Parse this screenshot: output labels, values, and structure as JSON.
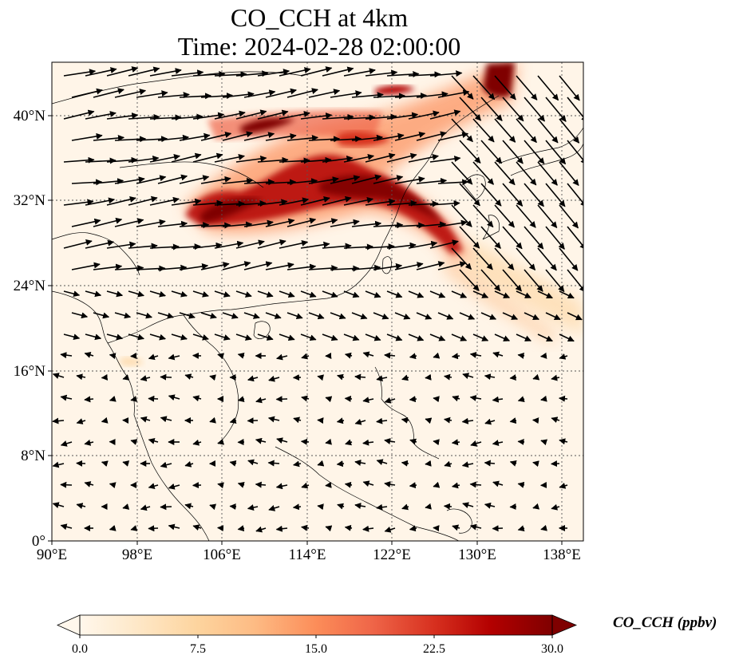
{
  "figure": {
    "title_line1": "CO_CCH at 4km",
    "title_line2": "Time: 2024-02-28 02:00:00"
  },
  "map": {
    "extent": {
      "lon_min": 90,
      "lon_max": 140,
      "lat_min": 0,
      "lat_max": 45
    },
    "x_ticks": [
      "90°E",
      "98°E",
      "106°E",
      "114°E",
      "122°E",
      "130°E",
      "138°E"
    ],
    "y_ticks": [
      "0°",
      "8°N",
      "16°N",
      "24°N",
      "32°N",
      "40°N"
    ],
    "grid": "dotted",
    "colormap": "OrRd",
    "overlay": "wind vectors"
  },
  "colorbar": {
    "label": "CO_CCH (ppbv)",
    "ticks": [
      "0.0",
      "7.5",
      "15.0",
      "22.5",
      "30.0"
    ],
    "min": 0,
    "max": 30,
    "extend": "both",
    "colors": [
      "#fff7ec",
      "#fee8c8",
      "#fdd49e",
      "#fdbb84",
      "#fc8d59",
      "#ef6548",
      "#d7301f",
      "#b30000",
      "#7f0000"
    ]
  }
}
